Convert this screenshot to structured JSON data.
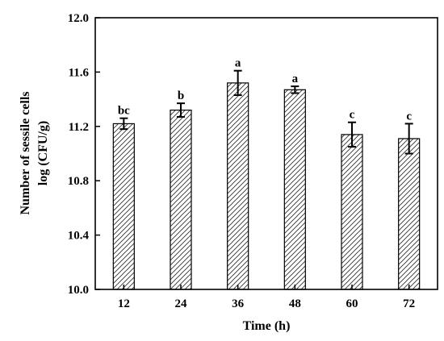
{
  "chart_data": {
    "type": "bar",
    "xlabel": "Time (h)",
    "ylabel_line1": "Number of sessile cells",
    "ylabel_line2": "log (CFU/g)",
    "categories": [
      "12",
      "24",
      "36",
      "48",
      "60",
      "72"
    ],
    "values": [
      11.22,
      11.32,
      11.52,
      11.47,
      11.14,
      11.11
    ],
    "errors": [
      0.04,
      0.05,
      0.09,
      0.025,
      0.09,
      0.11
    ],
    "significance": [
      "bc",
      "b",
      "a",
      "a",
      "c",
      "c"
    ],
    "ylim": [
      10.0,
      12.0
    ],
    "yticks": [
      "10.0",
      "10.4",
      "10.8",
      "11.2",
      "11.6",
      "12.0"
    ],
    "grid": false,
    "bar_fill": "hatched",
    "colors": {
      "bar_stroke": "#000000",
      "hatch": "#333333",
      "background": "#ffffff"
    }
  }
}
